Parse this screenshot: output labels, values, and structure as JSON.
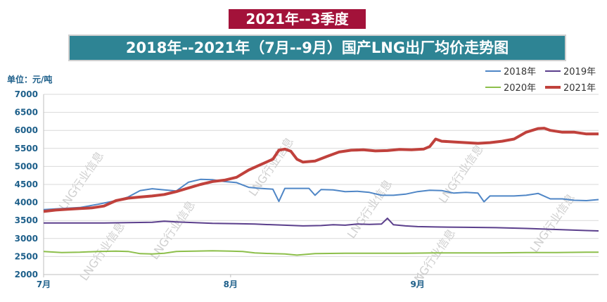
{
  "header": {
    "badge": "2021年--3季度",
    "title": "2018年--2021年（7月--9月）国产LNG出厂均价走势图"
  },
  "colors": {
    "badge_bg": "#a3123a",
    "banner_bg": "#2e8494",
    "axis_text": "#1d5f8a"
  },
  "watermark": "LNG行业信息",
  "chart_data": {
    "type": "line",
    "ylabel": "单位：元/吨",
    "ylim": [
      2000,
      7000
    ],
    "yticks": [
      "7000",
      "6500",
      "6000",
      "5500",
      "5000",
      "4500",
      "4000",
      "3500",
      "3000",
      "2500",
      "2000"
    ],
    "xlim": [
      0,
      92
    ],
    "xticks": [
      {
        "x": 0,
        "label": "7月"
      },
      {
        "x": 31,
        "label": "8月"
      },
      {
        "x": 62,
        "label": "9月"
      }
    ],
    "legend_position": "top-right",
    "series": [
      {
        "name": "2018年",
        "color": "#4f86c6",
        "width": 2,
        "points": [
          [
            0,
            3800
          ],
          [
            3,
            3830
          ],
          [
            6,
            3860
          ],
          [
            9,
            3950
          ],
          [
            12,
            4050
          ],
          [
            14,
            4150
          ],
          [
            16,
            4330
          ],
          [
            18,
            4380
          ],
          [
            20,
            4350
          ],
          [
            22,
            4320
          ],
          [
            24,
            4560
          ],
          [
            26,
            4640
          ],
          [
            28,
            4630
          ],
          [
            30,
            4580
          ],
          [
            32,
            4550
          ],
          [
            34,
            4420
          ],
          [
            36,
            4390
          ],
          [
            38,
            4370
          ],
          [
            39,
            4030
          ],
          [
            40,
            4390
          ],
          [
            44,
            4390
          ],
          [
            45,
            4200
          ],
          [
            46,
            4360
          ],
          [
            48,
            4350
          ],
          [
            50,
            4300
          ],
          [
            52,
            4310
          ],
          [
            54,
            4280
          ],
          [
            56,
            4200
          ],
          [
            58,
            4200
          ],
          [
            60,
            4230
          ],
          [
            62,
            4300
          ],
          [
            64,
            4340
          ],
          [
            66,
            4330
          ],
          [
            68,
            4260
          ],
          [
            70,
            4280
          ],
          [
            72,
            4260
          ],
          [
            73,
            4020
          ],
          [
            74,
            4180
          ],
          [
            78,
            4180
          ],
          [
            80,
            4200
          ],
          [
            82,
            4250
          ],
          [
            84,
            4100
          ],
          [
            86,
            4100
          ],
          [
            88,
            4060
          ],
          [
            90,
            4050
          ],
          [
            92,
            4080
          ]
        ]
      },
      {
        "name": "2019年",
        "color": "#5b3f8c",
        "width": 2,
        "points": [
          [
            0,
            3430
          ],
          [
            5,
            3430
          ],
          [
            10,
            3430
          ],
          [
            14,
            3440
          ],
          [
            18,
            3450
          ],
          [
            20,
            3480
          ],
          [
            22,
            3460
          ],
          [
            25,
            3440
          ],
          [
            28,
            3420
          ],
          [
            32,
            3410
          ],
          [
            35,
            3400
          ],
          [
            38,
            3380
          ],
          [
            40,
            3370
          ],
          [
            43,
            3350
          ],
          [
            46,
            3360
          ],
          [
            48,
            3380
          ],
          [
            50,
            3370
          ],
          [
            52,
            3400
          ],
          [
            54,
            3390
          ],
          [
            56,
            3400
          ],
          [
            57,
            3560
          ],
          [
            58,
            3380
          ],
          [
            60,
            3350
          ],
          [
            62,
            3330
          ],
          [
            65,
            3320
          ],
          [
            70,
            3310
          ],
          [
            75,
            3300
          ],
          [
            80,
            3280
          ],
          [
            85,
            3250
          ],
          [
            90,
            3220
          ],
          [
            92,
            3210
          ]
        ]
      },
      {
        "name": "2020年",
        "color": "#8dbf4b",
        "width": 2,
        "points": [
          [
            0,
            2640
          ],
          [
            3,
            2610
          ],
          [
            6,
            2620
          ],
          [
            9,
            2640
          ],
          [
            12,
            2650
          ],
          [
            14,
            2640
          ],
          [
            16,
            2580
          ],
          [
            18,
            2570
          ],
          [
            20,
            2590
          ],
          [
            22,
            2640
          ],
          [
            25,
            2650
          ],
          [
            28,
            2660
          ],
          [
            31,
            2650
          ],
          [
            33,
            2640
          ],
          [
            35,
            2600
          ],
          [
            38,
            2580
          ],
          [
            40,
            2570
          ],
          [
            42,
            2540
          ],
          [
            45,
            2580
          ],
          [
            50,
            2590
          ],
          [
            55,
            2590
          ],
          [
            60,
            2590
          ],
          [
            65,
            2600
          ],
          [
            70,
            2600
          ],
          [
            75,
            2600
          ],
          [
            80,
            2610
          ],
          [
            85,
            2610
          ],
          [
            90,
            2620
          ],
          [
            92,
            2620
          ]
        ]
      },
      {
        "name": "2021年",
        "color": "#c0413c",
        "width": 4,
        "points": [
          [
            0,
            3750
          ],
          [
            2,
            3790
          ],
          [
            4,
            3810
          ],
          [
            6,
            3830
          ],
          [
            8,
            3850
          ],
          [
            10,
            3900
          ],
          [
            12,
            4050
          ],
          [
            14,
            4120
          ],
          [
            16,
            4150
          ],
          [
            18,
            4180
          ],
          [
            20,
            4220
          ],
          [
            22,
            4300
          ],
          [
            24,
            4400
          ],
          [
            26,
            4500
          ],
          [
            28,
            4580
          ],
          [
            30,
            4620
          ],
          [
            32,
            4700
          ],
          [
            34,
            4900
          ],
          [
            36,
            5050
          ],
          [
            38,
            5200
          ],
          [
            39,
            5450
          ],
          [
            40,
            5480
          ],
          [
            41,
            5420
          ],
          [
            42,
            5200
          ],
          [
            43,
            5120
          ],
          [
            45,
            5150
          ],
          [
            47,
            5280
          ],
          [
            49,
            5400
          ],
          [
            51,
            5450
          ],
          [
            53,
            5460
          ],
          [
            55,
            5430
          ],
          [
            57,
            5440
          ],
          [
            59,
            5470
          ],
          [
            61,
            5460
          ],
          [
            63,
            5480
          ],
          [
            64,
            5550
          ],
          [
            65,
            5760
          ],
          [
            66,
            5700
          ],
          [
            68,
            5680
          ],
          [
            70,
            5660
          ],
          [
            72,
            5640
          ],
          [
            74,
            5660
          ],
          [
            76,
            5700
          ],
          [
            78,
            5760
          ],
          [
            80,
            5950
          ],
          [
            82,
            6050
          ],
          [
            83,
            6060
          ],
          [
            84,
            6000
          ],
          [
            86,
            5950
          ],
          [
            88,
            5950
          ],
          [
            90,
            5900
          ],
          [
            92,
            5900
          ]
        ]
      }
    ]
  }
}
